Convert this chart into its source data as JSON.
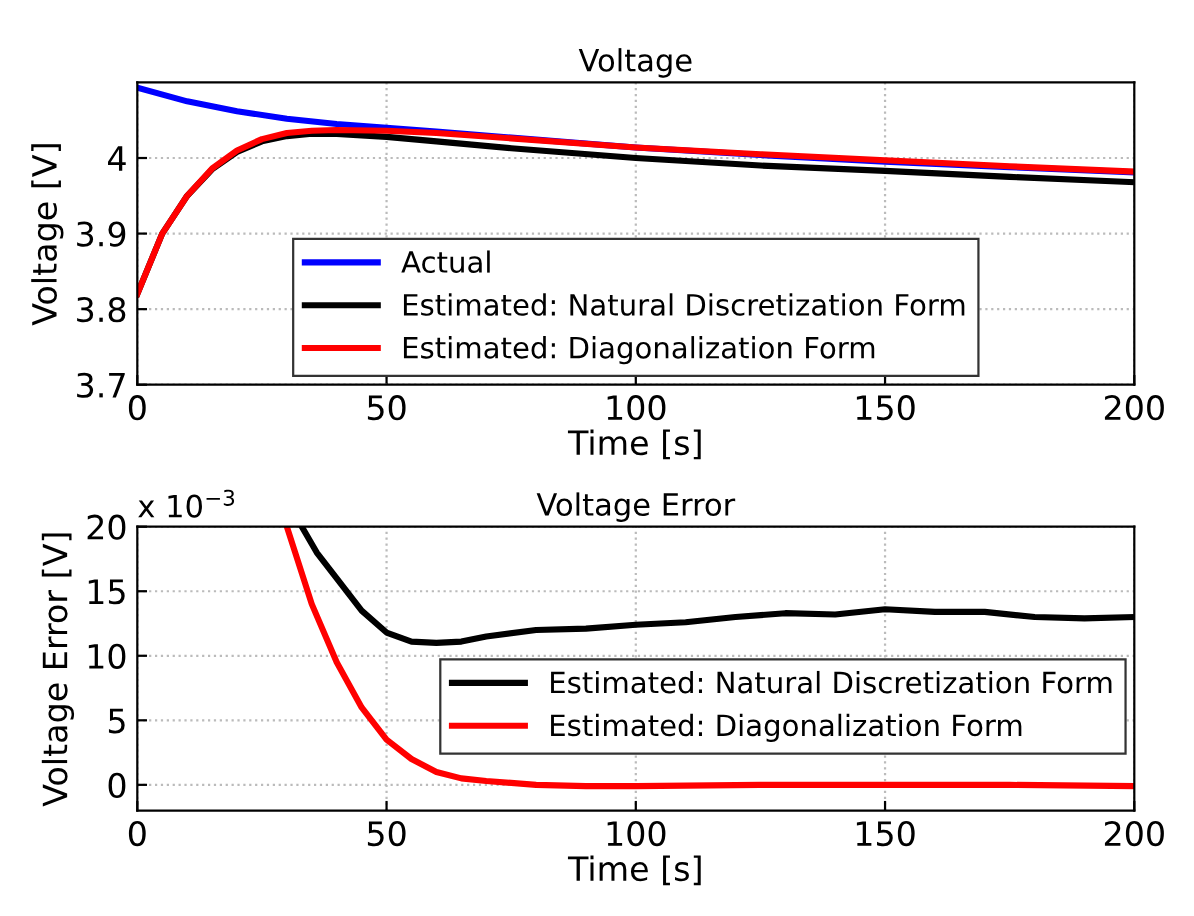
{
  "chart_data": [
    {
      "type": "line",
      "title": "Voltage",
      "xlabel": "Time [s]",
      "ylabel": "Voltage [V]",
      "xlim": [
        0,
        200
      ],
      "xticks": [
        0,
        50,
        100,
        150,
        200
      ],
      "ylim": [
        3.7,
        4.1
      ],
      "yticks": [
        3.7,
        3.8,
        3.9,
        4
      ],
      "grid": true,
      "legend": "bottom",
      "line_style": "solid",
      "series": [
        {
          "name": "Actual",
          "color": "#0000ff",
          "x": [
            0,
            10,
            20,
            30,
            40,
            50,
            60,
            75,
            100,
            125,
            150,
            175,
            200
          ],
          "values": [
            4.093,
            4.075,
            4.062,
            4.052,
            4.045,
            4.04,
            4.035,
            4.027,
            4.014,
            4.004,
            3.995,
            3.988,
            3.981
          ]
        },
        {
          "name": "Estimated: Natural Discretization Form",
          "color": "#000000",
          "x": [
            0,
            5,
            10,
            15,
            20,
            25,
            30,
            35,
            40,
            50,
            60,
            75,
            100,
            125,
            150,
            175,
            200
          ],
          "values": [
            3.82,
            3.9,
            3.95,
            3.985,
            4.008,
            4.022,
            4.029,
            4.032,
            4.032,
            4.028,
            4.022,
            4.013,
            4.0,
            3.99,
            3.983,
            3.975,
            3.968
          ]
        },
        {
          "name": "Estimated: Diagonalization Form",
          "color": "#ff0000",
          "x": [
            0,
            5,
            10,
            15,
            20,
            25,
            30,
            35,
            40,
            50,
            60,
            75,
            100,
            125,
            150,
            175,
            200
          ],
          "values": [
            3.82,
            3.9,
            3.95,
            3.986,
            4.01,
            4.025,
            4.033,
            4.036,
            4.037,
            4.036,
            4.033,
            4.026,
            4.014,
            4.005,
            3.997,
            3.989,
            3.982
          ]
        }
      ]
    },
    {
      "type": "line",
      "title": "Voltage Error",
      "xlabel": "Time [s]",
      "ylabel": "Voltage Error [V]",
      "annotations": [
        "x 10$^{−3}$"
      ],
      "xlim": [
        0,
        200
      ],
      "xticks": [
        0,
        50,
        100,
        150,
        200
      ],
      "ylim": [
        -2,
        20
      ],
      "yticks": [
        0,
        5,
        10,
        15,
        20
      ],
      "grid": true,
      "legend": "right",
      "line_style": "solid",
      "series": [
        {
          "name": "Estimated: Natural Discretization Form",
          "color": "#000000",
          "x": [
            33,
            36,
            40,
            45,
            50,
            55,
            60,
            65,
            70,
            80,
            90,
            100,
            110,
            120,
            130,
            140,
            150,
            160,
            170,
            180,
            190,
            200
          ],
          "values": [
            20,
            18,
            16,
            13.5,
            11.8,
            11.1,
            11.0,
            11.1,
            11.5,
            12.0,
            12.1,
            12.4,
            12.6,
            13.0,
            13.3,
            13.2,
            13.6,
            13.4,
            13.4,
            13.0,
            12.9,
            13.0
          ]
        },
        {
          "name": "Estimated: Diagonalization Form",
          "color": "#ff0000",
          "x": [
            30,
            35,
            40,
            45,
            50,
            55,
            60,
            65,
            70,
            80,
            90,
            100,
            125,
            150,
            175,
            200
          ],
          "values": [
            20,
            14,
            9.5,
            6,
            3.5,
            2,
            1,
            0.5,
            0.3,
            0,
            -0.1,
            -0.1,
            0,
            0,
            0,
            -0.1
          ]
        }
      ]
    }
  ]
}
